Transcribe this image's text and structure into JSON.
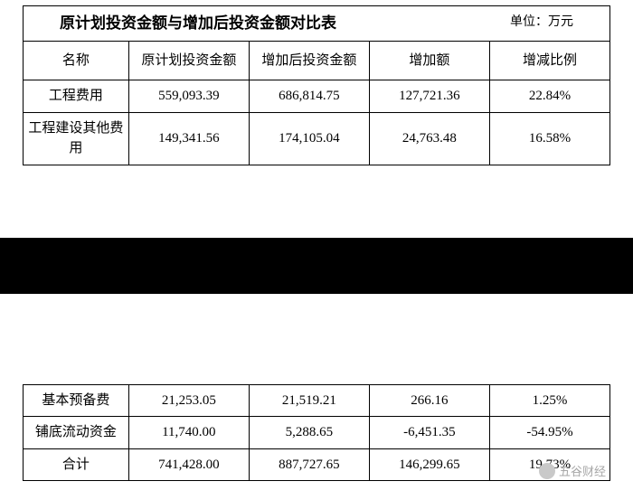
{
  "header": {
    "title": "原计划投资金额与增加后投资金额对比表",
    "unit": "单位：万元"
  },
  "columns": {
    "name": "名称",
    "original": "原计划投资金额",
    "increased": "增加后投资金额",
    "delta": "增加额",
    "ratio": "增减比例"
  },
  "rows_top": [
    {
      "name": "工程费用",
      "original": "559,093.39",
      "increased": "686,814.75",
      "delta": "127,721.36",
      "ratio": "22.84%"
    },
    {
      "name": "工程建设其他费用",
      "original": "149,341.56",
      "increased": "174,105.04",
      "delta": "24,763.48",
      "ratio": "16.58%"
    }
  ],
  "rows_bottom": [
    {
      "name": "基本预备费",
      "original": "21,253.05",
      "increased": "21,519.21",
      "delta": "266.16",
      "ratio": "1.25%"
    },
    {
      "name": "铺底流动资金",
      "original": "11,740.00",
      "increased": "5,288.65",
      "delta": "-6,451.35",
      "ratio": "-54.95%"
    },
    {
      "name": "合计",
      "original": "741,428.00",
      "increased": "887,727.65",
      "delta": "146,299.65",
      "ratio": "19.73%"
    }
  ],
  "watermark": "五谷财经",
  "style": {
    "border_color": "#000000",
    "background": "#ffffff",
    "font_family": "SimSun",
    "title_fontsize": 17,
    "cell_fontsize": 15,
    "band_color": "#000000"
  }
}
